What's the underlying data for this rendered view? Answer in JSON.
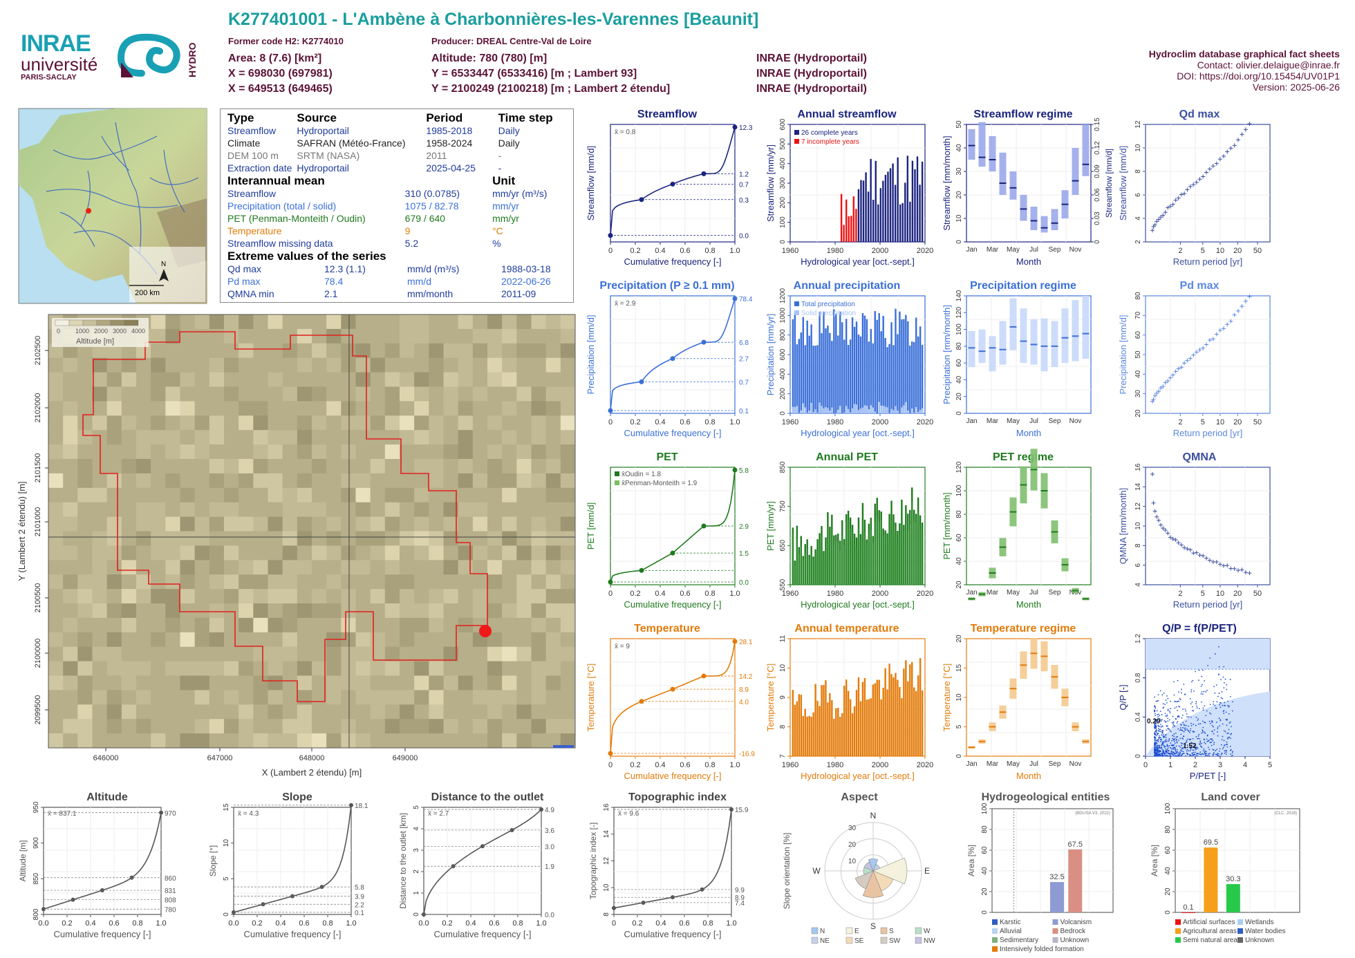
{
  "header": {
    "title": "K277401001 - L'Ambène à Charbonnières-les-Varennes [Beaunit]",
    "former_code": "Former code H2: K2774010",
    "producer": "Producer: DREAL Centre-Val de Loire",
    "area": "Area: 8 (7.6) [km²]",
    "altitude": "Altitude: 780 (780) [m]",
    "x93": "X = 698030 (697981)",
    "y93": "Y = 6533447 (6533416) [m ; Lambert 93]",
    "x2": "X = 649513 (649465)",
    "y2": "Y = 2100249 (2100218) [m ; Lambert 2 étendu]",
    "src1": "INRAE (Hydroportail)",
    "src2": "INRAE (Hydroportail)",
    "src3": "INRAE (Hydroportail)",
    "right_title": "Hydroclim database graphical fact sheets",
    "contact": "Contact: olivier.delaigue@inrae.fr",
    "doi": "DOI: https://doi.org/10.15454/UV01P1",
    "version": "Version: 2025-06-26"
  },
  "logos": {
    "inrae": "INRAE",
    "universite": "université",
    "paris_saclay": "PARIS-SACLAY",
    "hydro": "HYDRO"
  },
  "info_table": {
    "head": [
      "Type",
      "Source",
      "Period",
      "Time step"
    ],
    "rows": [
      {
        "type": "Streamflow",
        "source": "Hydroportail",
        "period": "1985-2018",
        "step": "Daily",
        "color": "#1f3c9b"
      },
      {
        "type": "Climate",
        "source": "SAFRAN (Météo-France)",
        "period": "1958-2024",
        "step": "Daily",
        "color": "#222222"
      },
      {
        "type": "DEM 100 m",
        "source": "SRTM (NASA)",
        "period": "2011",
        "step": "-",
        "color": "#777777"
      },
      {
        "type": "Extraction date",
        "source": "Hydroportail",
        "period": "2025-04-25",
        "step": "-",
        "color": "#1f3c9b"
      }
    ],
    "mean_head": [
      "Interannual mean",
      "Unit"
    ],
    "mean_rows": [
      {
        "name": "Streamflow",
        "value": "310 (0.0785)",
        "unit": "mm/yr (m³/s)",
        "color": "#1f3c9b"
      },
      {
        "name": "Precipitation (total / solid)",
        "value": "1075 / 82.78",
        "unit": "mm/yr",
        "color": "#3a6fd8"
      },
      {
        "name": "PET (Penman-Monteith / Oudin)",
        "value": "679 / 640",
        "unit": "mm/yr",
        "color": "#1e7a1e"
      },
      {
        "name": "Temperature",
        "value": "9",
        "unit": "°C",
        "color": "#e37b0a"
      },
      {
        "name": "Streamflow missing data",
        "value": "5.2",
        "unit": "%",
        "color": "#1f3c9b"
      }
    ],
    "extreme_head": "Extreme values of the series",
    "extreme_rows": [
      {
        "name": "Qd max",
        "value": "12.3 (1.1)",
        "unit": "mm/d (m³/s)",
        "date": "1988-03-18",
        "color": "#1f3c9b"
      },
      {
        "name": "Pd max",
        "value": "78.4",
        "unit": "mm/d",
        "date": "2022-06-26",
        "color": "#3a6fd8"
      },
      {
        "name": "QMNA min",
        "value": "2.1",
        "unit": "mm/month",
        "date": "2011-09",
        "color": "#1f3c9b"
      }
    ]
  },
  "inset_map": {
    "scale": "200 km",
    "north": "N"
  },
  "main_map": {
    "legend_title": "Altitude [m]",
    "legend_ticks": [
      "0",
      "1000",
      "2000",
      "3000",
      "4000"
    ],
    "xlabel": "X (Lambert 2 étendu) [m]",
    "ylabel": "Y (Lambert 2 étendu) [m]",
    "xticks": [
      "646000",
      "647000",
      "648000",
      "649000"
    ],
    "yticks": [
      "2102500",
      "2102000",
      "2101500",
      "2101000",
      "2100500",
      "2100000",
      "2099500"
    ]
  },
  "chart_data": [
    {
      "id": "streamflow_fdc",
      "type": "line",
      "title": "Streamflow",
      "xlabel": "Cumulative frequency [-]",
      "ylabel": "Streamflow [mm/d]",
      "mean_label": "x̄ = 0.8",
      "color": "#1a237e",
      "xticks": [
        "0",
        "0.2",
        "0.4",
        "0.6",
        "0.8",
        "1.0"
      ],
      "right_labels": [
        "12.3",
        "1.2",
        "0.7",
        "0.3",
        "0.0"
      ],
      "x": [
        0,
        0.25,
        0.5,
        0.75,
        1.0
      ],
      "y": [
        0.0,
        0.3,
        0.7,
        1.2,
        12.3
      ]
    },
    {
      "id": "annual_streamflow",
      "type": "bar",
      "title": "Annual streamflow",
      "xlabel": "Hydrological year [oct.-sept.]",
      "ylabel": "Streamflow [mm/yr]",
      "legend": [
        "26 complete years",
        "7 incomplete years"
      ],
      "xticks": [
        "1960",
        "1980",
        "2000",
        "2020"
      ],
      "yticks": [
        "0",
        "100",
        "200",
        "300",
        "400",
        "500",
        "600"
      ],
      "color": "#1a237e"
    },
    {
      "id": "streamflow_regime",
      "type": "bar",
      "title": "Streamflow regime",
      "xlabel": "Month",
      "ylabel": "Streamflow [mm/month]",
      "ylabel2": "Streamflow [mm/d]",
      "months": [
        "Jan",
        "Mar",
        "May",
        "Jul",
        "Sep",
        "Nov"
      ],
      "yticks": [
        "0",
        "10",
        "20",
        "30",
        "40",
        "50"
      ],
      "y2ticks": [
        "0",
        "0.03",
        "0.06",
        "0.09",
        "0.12",
        "0.15"
      ],
      "median": [
        41,
        36,
        35,
        25,
        23,
        14,
        9,
        6,
        8,
        16,
        26,
        33
      ],
      "low": [
        35,
        32,
        30,
        20,
        18,
        9,
        5,
        4,
        5,
        10,
        20,
        28
      ],
      "high": [
        48,
        51,
        45,
        38,
        30,
        20,
        15,
        11,
        14,
        22,
        40,
        50
      ],
      "color": "#3d5ccf"
    },
    {
      "id": "qd_max",
      "type": "scatter",
      "title": "Qd max",
      "xlabel": "Return period [yr]",
      "ylabel": "Streamflow [mm/d]",
      "xticks": [
        "2",
        "5",
        "10",
        "20",
        "50"
      ],
      "yticks": [
        "2",
        "4",
        "6",
        "8",
        "10",
        "12"
      ],
      "color": "#3a4ea0"
    },
    {
      "id": "precip_fdc",
      "type": "line",
      "title": "Precipitation (P ≥ 0.1 mm)",
      "xlabel": "Cumulative frequency [-]",
      "ylabel": "Precipitation [mm/d]",
      "mean_label": "x̄ = 2.9",
      "color": "#3a6fd8",
      "xticks": [
        "0",
        "0.2",
        "0.4",
        "0.6",
        "0.8",
        "1.0"
      ],
      "right_labels": [
        "78.4",
        "6.8",
        "2.7",
        "0.7",
        "0.1"
      ],
      "x": [
        0,
        0.25,
        0.5,
        0.75,
        1.0
      ],
      "y": [
        0.1,
        0.7,
        2.7,
        6.8,
        78.4
      ]
    },
    {
      "id": "annual_precip",
      "type": "bar",
      "title": "Annual precipitation",
      "xlabel": "Hydrological year [oct.-sept.]",
      "ylabel": "Precipitation [mm/yr]",
      "legend": [
        "Total precipitation",
        "Solid precipitation"
      ],
      "xticks": [
        "1960",
        "1980",
        "2000",
        "2020"
      ],
      "yticks": [
        "0",
        "200",
        "400",
        "600",
        "800",
        "1000",
        "1200"
      ],
      "color": "#3a6fd8"
    },
    {
      "id": "precip_regime",
      "type": "bar",
      "title": "Precipitation regime",
      "xlabel": "Month",
      "ylabel": "Precipitation [mm/month]",
      "months": [
        "Jan",
        "Mar",
        "May",
        "Jul",
        "Sep",
        "Nov"
      ],
      "yticks": [
        "0",
        "20",
        "40",
        "60",
        "80",
        "100",
        "120",
        "140"
      ],
      "median": [
        78,
        74,
        78,
        76,
        103,
        86,
        82,
        80,
        80,
        90,
        92,
        95
      ],
      "low": [
        55,
        60,
        50,
        58,
        75,
        60,
        58,
        50,
        55,
        60,
        62,
        65
      ],
      "high": [
        98,
        100,
        92,
        110,
        137,
        125,
        112,
        113,
        110,
        125,
        135,
        140
      ],
      "color": "#7aa5f0"
    },
    {
      "id": "pd_max",
      "type": "scatter",
      "title": "Pd max",
      "xlabel": "Return period [yr]",
      "ylabel": "Precipitation [mm/d]",
      "xticks": [
        "2",
        "5",
        "10",
        "20",
        "50"
      ],
      "yticks": [
        "20",
        "30",
        "40",
        "50",
        "60",
        "70",
        "80"
      ],
      "color": "#5a86e0"
    },
    {
      "id": "pet_fdc",
      "type": "line",
      "title": "PET",
      "xlabel": "Cumulative frequency [-]",
      "ylabel": "PET [mm/d]",
      "mean_labels": [
        "x̄Oudin = 1.8",
        "x̄Penman-Monteith = 1.9"
      ],
      "color": "#1e7a1e",
      "xticks": [
        "0",
        "0.2",
        "0.4",
        "0.6",
        "0.8",
        "1.0"
      ],
      "right_labels": [
        "5.8",
        "2.9",
        "1.5",
        "0.0"
      ],
      "x": [
        0,
        0.25,
        0.5,
        0.75,
        1.0
      ],
      "y": [
        0.0,
        0.6,
        1.5,
        2.9,
        5.8
      ]
    },
    {
      "id": "annual_pet",
      "type": "bar",
      "title": "Annual PET",
      "xlabel": "Hydrological year [oct.-sept.]",
      "ylabel": "PET [mm/yr]",
      "xticks": [
        "1960",
        "1980",
        "2000",
        "2020"
      ],
      "yticks": [
        "550",
        "650",
        "750",
        "850"
      ],
      "color": "#1e7a1e"
    },
    {
      "id": "pet_regime",
      "type": "bar",
      "title": "PET regime",
      "xlabel": "Month",
      "ylabel": "PET [mm/month]",
      "months": [
        "Jan",
        "Mar",
        "May",
        "Jul",
        "Sep",
        "Nov"
      ],
      "yticks": [
        "20",
        "40",
        "60",
        "80",
        "100",
        "120"
      ],
      "median": [
        8,
        12,
        30,
        52,
        82,
        105,
        118,
        100,
        65,
        37,
        15,
        8
      ],
      "color": "#2e8b2e"
    },
    {
      "id": "qmna",
      "type": "scatter",
      "title": "QMNA",
      "xlabel": "Return period [yr]",
      "ylabel": "QMNA [mm/month]",
      "xticks": [
        "2",
        "5",
        "10",
        "20",
        "50"
      ],
      "yticks": [
        "4",
        "6",
        "8",
        "10",
        "12",
        "14",
        "16"
      ],
      "color": "#3a4ea0"
    },
    {
      "id": "temp_fdc",
      "type": "line",
      "title": "Temperature",
      "xlabel": "Cumulative frequency [-]",
      "ylabel": "Temperature [°C]",
      "mean_label": "x̄ = 9",
      "color": "#e37b0a",
      "xticks": [
        "0",
        "0.2",
        "0.4",
        "0.6",
        "0.8",
        "1.0"
      ],
      "right_labels": [
        "28.1",
        "14.2",
        "8.9",
        "4.0",
        "-16.9"
      ],
      "x": [
        0,
        0.25,
        0.5,
        0.75,
        1.0
      ],
      "y": [
        -16.9,
        4.0,
        8.9,
        14.2,
        28.1
      ]
    },
    {
      "id": "annual_temp",
      "type": "bar",
      "title": "Annual temperature",
      "xlabel": "Hydrological year [oct.-sept.]",
      "ylabel": "Temperature [°C]",
      "xticks": [
        "1960",
        "1980",
        "2000",
        "2020"
      ],
      "yticks": [
        "7",
        "8",
        "9",
        "10",
        "11"
      ],
      "color": "#e37b0a"
    },
    {
      "id": "temp_regime",
      "type": "bar",
      "title": "Temperature regime",
      "xlabel": "Month",
      "ylabel": "Temperature [°C]",
      "months": [
        "Jan",
        "Mar",
        "May",
        "Jul",
        "Sep",
        "Nov"
      ],
      "yticks": [
        "0",
        "5",
        "10",
        "15",
        "20"
      ],
      "median": [
        1.5,
        2.5,
        5,
        7.5,
        11.5,
        15.5,
        17.5,
        17,
        13.5,
        10,
        5,
        2.5
      ],
      "color": "#e37b0a"
    },
    {
      "id": "qp",
      "type": "scatter",
      "title": "Q/P = f(P/PET)",
      "xlabel": "P/PET [-]",
      "ylabel": "Q/P [-]",
      "xticks": [
        "0",
        "1",
        "2",
        "3",
        "4",
        "5"
      ],
      "yticks": [
        "0",
        "0.4",
        "0.8",
        "1.2"
      ],
      "annotations": [
        "0.29",
        "1.52"
      ],
      "color": "#1f4fcf"
    },
    {
      "id": "altitude_dist",
      "type": "line",
      "title": "Altitude",
      "xlabel": "Cumulative frequency [-]",
      "ylabel": "Altitude [m]",
      "mean_label": "x̄ = 837.1",
      "xticks": [
        "0.0",
        "0.2",
        "0.4",
        "0.6",
        "0.8",
        "1.0"
      ],
      "yticks": [
        "800",
        "850",
        "900",
        "950"
      ],
      "right_labels": [
        "970",
        "860",
        "831",
        "808",
        "780"
      ]
    },
    {
      "id": "slope_dist",
      "type": "line",
      "title": "Slope",
      "xlabel": "Cumulative frequency [-]",
      "ylabel": "Slope [°]",
      "mean_label": "x̄ = 4.3",
      "xticks": [
        "0.0",
        "0.2",
        "0.4",
        "0.6",
        "0.8",
        "1.0"
      ],
      "yticks": [
        "0",
        "5",
        "10",
        "15"
      ],
      "right_labels": [
        "18.1",
        "5.8",
        "3.9",
        "2.2",
        "0.1"
      ]
    },
    {
      "id": "distance_dist",
      "type": "line",
      "title": "Distance to the outlet",
      "xlabel": "Cumulative frequency [-]",
      "ylabel": "Distance to the outlet [km]",
      "mean_label": "x̄ = 2.7",
      "xticks": [
        "0.0",
        "0.2",
        "0.4",
        "0.6",
        "0.8",
        "1.0"
      ],
      "yticks": [
        "0",
        "1",
        "2",
        "3",
        "4",
        "5"
      ],
      "right_labels": [
        "4.9",
        "3.6",
        "3.0",
        "1.9",
        "0.0"
      ]
    },
    {
      "id": "topo_dist",
      "type": "line",
      "title": "Topographic index",
      "xlabel": "Cumulative frequency [-]",
      "ylabel": "Topographic index [-]",
      "mean_label": "x̄ = 9.6",
      "xticks": [
        "0",
        "0.2",
        "0.4",
        "0.6",
        "0.8",
        "1.0"
      ],
      "yticks": [
        "8",
        "10",
        "12",
        "14",
        "16"
      ],
      "right_labels": [
        "15.9",
        "9.9",
        "8.9",
        "7.4"
      ]
    },
    {
      "id": "aspect",
      "type": "pie",
      "title": "Aspect",
      "ylabel": "Slope orientation [%]",
      "directions": [
        "N",
        "E",
        "S",
        "W"
      ],
      "rings": [
        "10",
        "20",
        "30"
      ],
      "legend": [
        "N",
        "E",
        "S",
        "W",
        "NE",
        "SE",
        "SW",
        "NW"
      ]
    },
    {
      "id": "hydrogeo",
      "type": "bar",
      "title": "Hydrogeological entities",
      "ylabel": "Area [%]",
      "note": "(BDLISA V3, 2022)",
      "categories": [
        "Volcanism",
        "Bedrock"
      ],
      "values": [
        32.5,
        67.5
      ],
      "value_labels": [
        "32.5",
        "67.5"
      ],
      "yticks": [
        "0",
        "20",
        "40",
        "60",
        "80",
        "100"
      ],
      "legend": [
        "Karstic",
        "Volcanism",
        "Alluvial",
        "Bedrock",
        "Sedimentary",
        "Unknown",
        "Intensively folded formation"
      ]
    },
    {
      "id": "landcover",
      "type": "bar",
      "title": "Land cover",
      "ylabel": "Area [%]",
      "note": "(CLC, 2018)",
      "categories": [
        "Artificial surfaces",
        "Agricultural areas",
        "Semi natural areas"
      ],
      "values": [
        0.1,
        69.5,
        30.3
      ],
      "value_labels": [
        "0.1",
        "69.5",
        "30.3"
      ],
      "yticks": [
        "0",
        "20",
        "40",
        "60",
        "80",
        "100"
      ],
      "legend": [
        "Artificial surfaces",
        "Wetlands",
        "Agricultural areas",
        "Water bodies",
        "Semi natural areas",
        "Unknown"
      ]
    }
  ]
}
